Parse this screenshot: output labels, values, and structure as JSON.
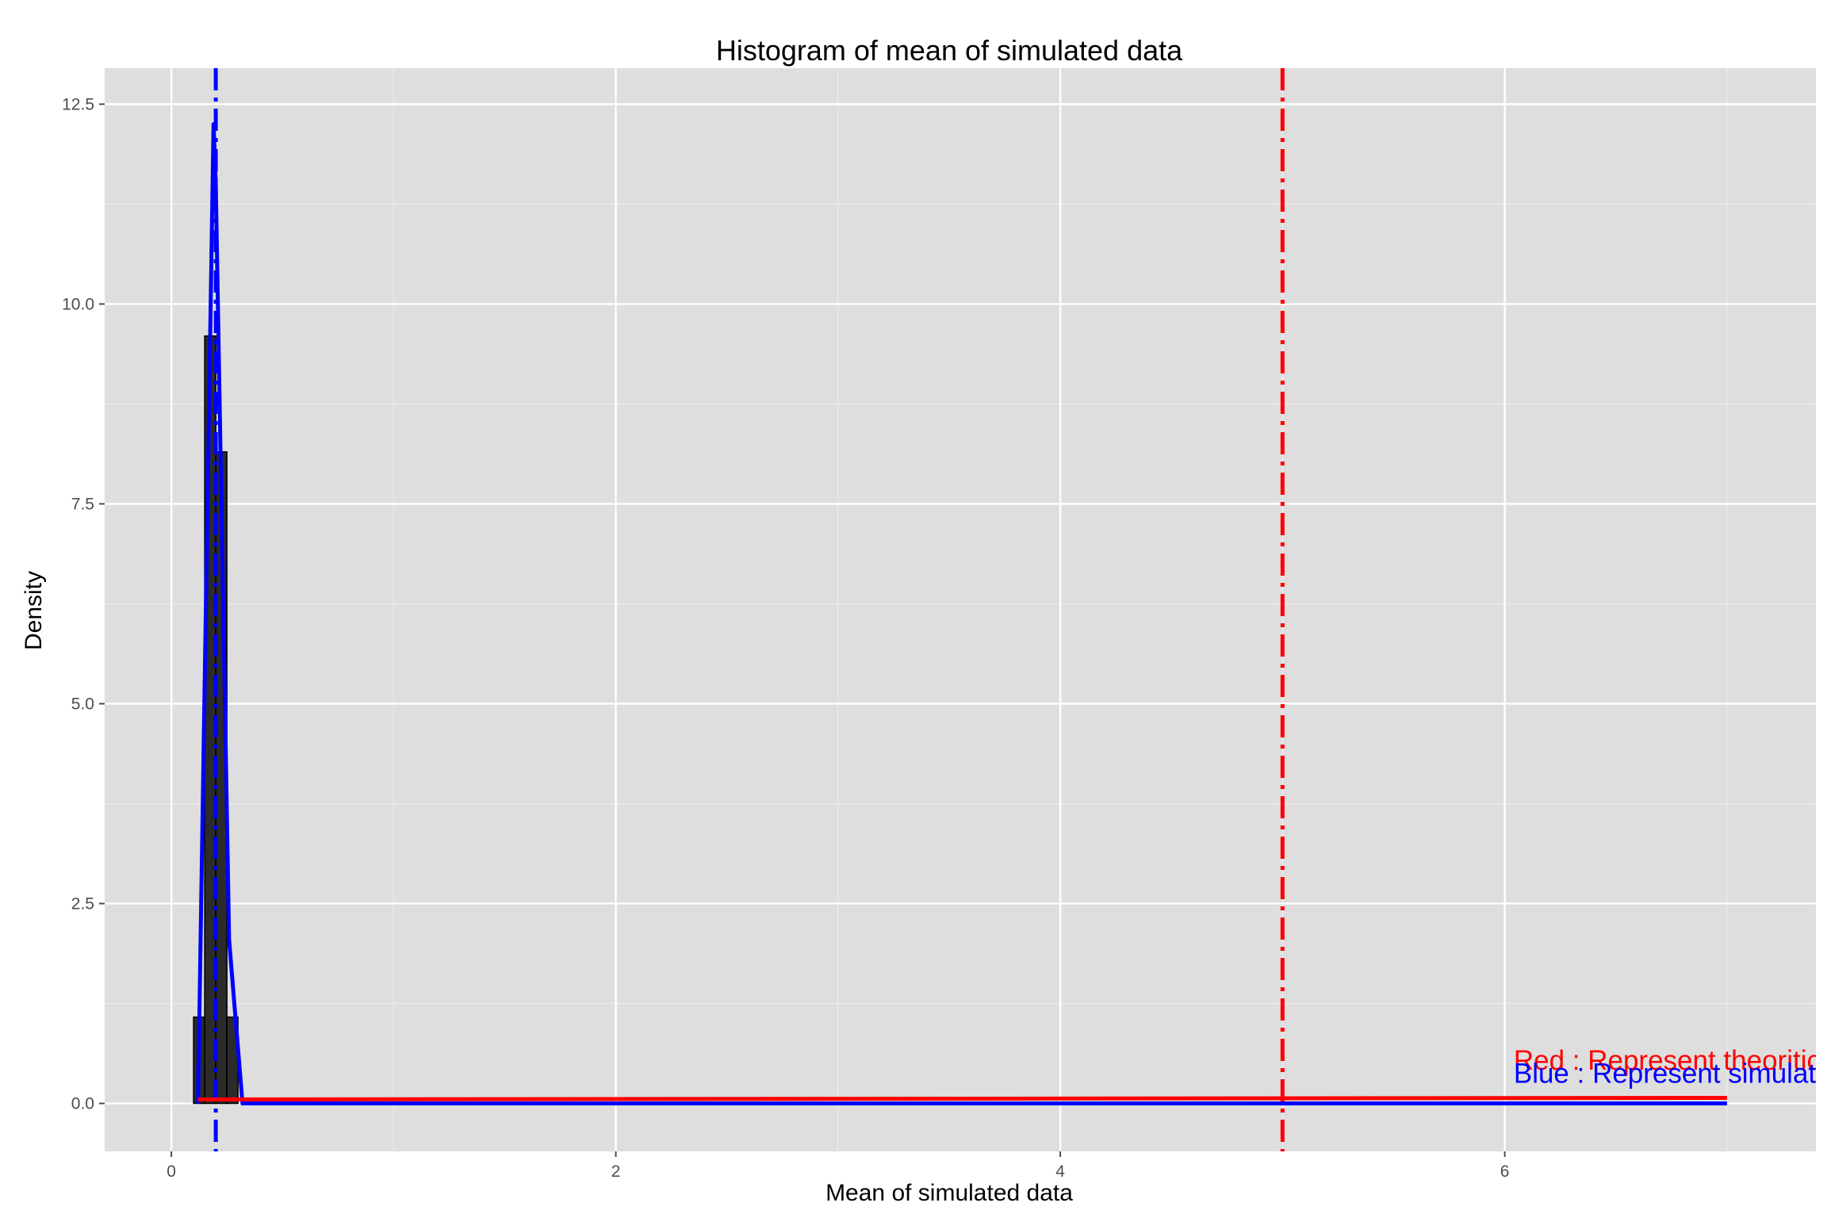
{
  "chart_data": {
    "type": "bar",
    "title": "Histogram of mean of simulated data",
    "xlabel": "Mean of simulated data",
    "ylabel": "Density",
    "xlim": [
      -0.3,
      7.4
    ],
    "ylim": [
      -0.6,
      12.95
    ],
    "x_ticks": [
      {
        "value": 0,
        "label": "0"
      },
      {
        "value": 2,
        "label": "2"
      },
      {
        "value": 4,
        "label": "4"
      },
      {
        "value": 6,
        "label": "6"
      }
    ],
    "y_ticks": [
      {
        "value": 0,
        "label": "0.0"
      },
      {
        "value": 2.5,
        "label": "2.5"
      },
      {
        "value": 5,
        "label": "5.0"
      },
      {
        "value": 7.5,
        "label": "7.5"
      },
      {
        "value": 10,
        "label": "10.0"
      },
      {
        "value": 12.5,
        "label": "12.5"
      }
    ],
    "grid": true,
    "background": "#dedede",
    "bar_color": "#2b2b2b",
    "histogram": {
      "bins": [
        {
          "x0": 0.1,
          "x1": 0.15,
          "density": 1.08
        },
        {
          "x0": 0.15,
          "x1": 0.2,
          "density": 9.6
        },
        {
          "x0": 0.2,
          "x1": 0.25,
          "density": 8.15
        },
        {
          "x0": 0.25,
          "x1": 0.3,
          "density": 1.08
        }
      ]
    },
    "series": [
      {
        "kind": "line",
        "color": "#0000ff",
        "x": [
          0.12,
          0.18,
          0.19,
          0.2,
          0.26,
          0.32,
          0.4,
          1.0,
          3.0,
          5.0,
          7.0
        ],
        "y": [
          0.0,
          10.5,
          12.25,
          11.5,
          2.05,
          0.0,
          0.0,
          0.0,
          0.0,
          0.0,
          0.0
        ]
      },
      {
        "kind": "line",
        "color": "#ff0000",
        "x": [
          0.12,
          7.0
        ],
        "y": [
          0.05,
          0.07
        ]
      }
    ],
    "vlines": [
      {
        "x": 0.2,
        "color": "#0000ff",
        "style": "dashdot"
      },
      {
        "x": 5.0,
        "color": "#ff0000",
        "style": "dashdot"
      }
    ],
    "annotations": [
      {
        "text": "Red : Represent theoritical",
        "color": "#ff0000",
        "x": 6.04,
        "y": 0.42
      },
      {
        "text": "Blue : Represent simulation",
        "color": "#0000ff",
        "x": 6.04,
        "y": 0.26
      }
    ]
  }
}
